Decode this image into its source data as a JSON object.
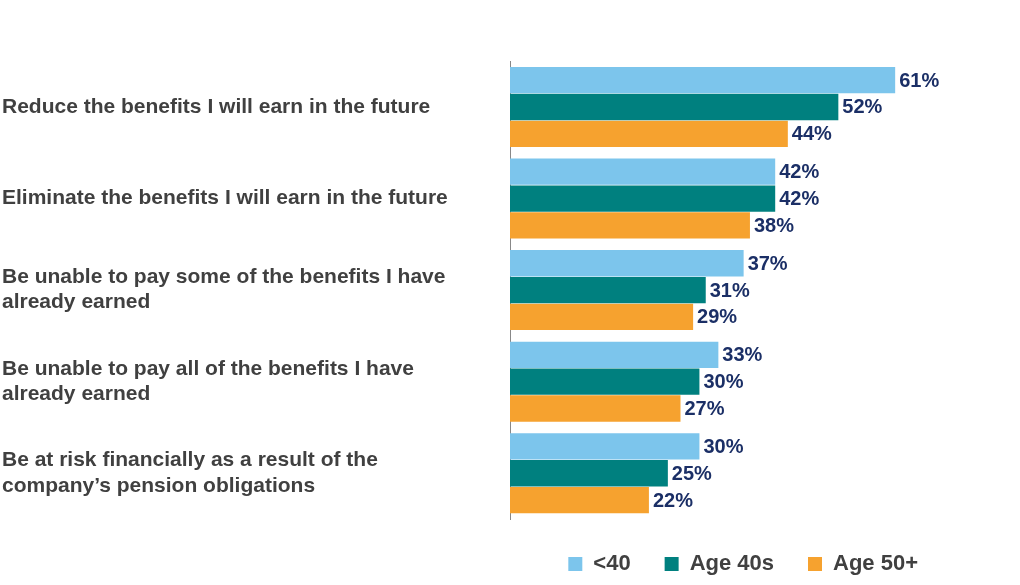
{
  "chart_data": {
    "type": "bar",
    "orientation": "horizontal",
    "categories": [
      "Reduce the benefits I will earn in the future",
      "Eliminate the benefits I will earn in the future",
      "Be unable to pay some of the benefits I have already earned",
      "Be unable to pay all of the benefits I have already earned",
      "Be at risk financially as a result of the company’s pension obligations"
    ],
    "series": [
      {
        "name": "<40",
        "color": "#7cc5ec",
        "values": [
          61,
          42,
          37,
          33,
          30
        ],
        "value_labels": [
          "61%",
          "42%",
          "37%",
          "33%",
          "30%"
        ]
      },
      {
        "name": "Age 40s",
        "color": "#00807f",
        "values": [
          52,
          42,
          31,
          30,
          25
        ],
        "value_labels": [
          "52%",
          "42%",
          "31%",
          "30%",
          "25%"
        ]
      },
      {
        "name": "Age 50+",
        "color": "#f6a22f",
        "values": [
          44,
          38,
          29,
          27,
          22
        ],
        "value_labels": [
          "44%",
          "38%",
          "29%",
          "27%",
          "22%"
        ]
      }
    ],
    "tick_labels": "y",
    "grid": false,
    "legend": "bottom"
  }
}
